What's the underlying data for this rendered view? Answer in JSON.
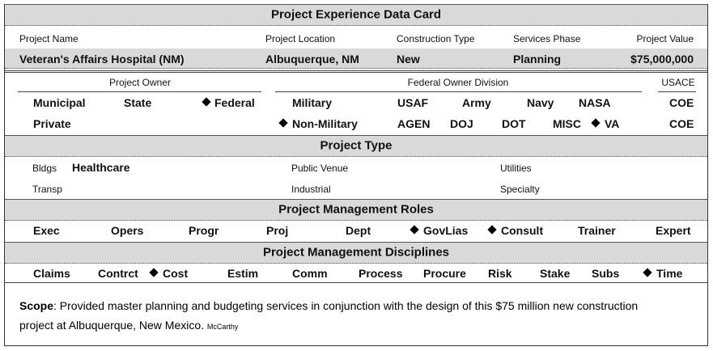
{
  "title": "Project Experience Data Card",
  "project": {
    "labels": [
      "Project Name",
      "Project Location",
      "Construction Type",
      "Services Phase",
      "Project Value"
    ],
    "values": [
      "Veteran's Affairs Hospital (NM)",
      "Albuquerque, NM",
      "New",
      "Planning",
      "$75,000,000"
    ]
  },
  "owner": {
    "headers": [
      "Project Owner",
      "Federal Owner Division",
      "USACE"
    ],
    "rows": [
      [
        "Municipal",
        "State",
        "Federal",
        "Military",
        "USAF",
        "Army",
        "Navy",
        "NASA",
        "COE"
      ],
      [
        "Private",
        "Non-Military",
        "AGEN",
        "DOJ",
        "DOT",
        "MISC",
        "VA",
        "COE"
      ]
    ]
  },
  "project_type": {
    "title": "Project Type",
    "rows": [
      [
        "Bldgs",
        "Healthcare",
        "Public Venue",
        "Utilities"
      ],
      [
        "Transp",
        "Industrial",
        "Specialty"
      ]
    ]
  },
  "roles": {
    "title": "Project Management Roles",
    "items": [
      "Exec",
      "Opers",
      "Progr",
      "Proj",
      "Dept",
      "GovLias",
      "Consult",
      "Trainer",
      "Expert"
    ]
  },
  "disciplines": {
    "title": "Project Management Disciplines",
    "items": [
      "Claims",
      "Contrct",
      "Cost",
      "Estim",
      "Comm",
      "Process",
      "Procure",
      "Risk",
      "Stake",
      "Subs",
      "Time"
    ]
  },
  "scope": {
    "label": "Scope",
    "text": ": Provided master planning and budgeting services in conjunction with the design of this $75 million new construction project at Albuquerque, New Mexico.",
    "source": "McCarthy"
  }
}
